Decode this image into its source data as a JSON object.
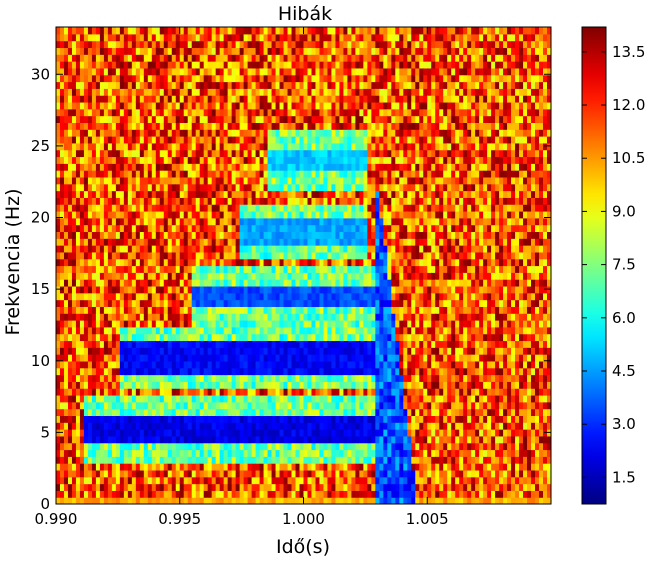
{
  "chart_data": {
    "type": "heatmap",
    "title": "Hibák",
    "xlabel": "Idő(s)",
    "ylabel": "Frekvencia (Hz)",
    "xlim": [
      0.99,
      1.01
    ],
    "ylim": [
      0,
      33.3
    ],
    "x_ticks": [
      0.99,
      0.995,
      1.0,
      1.005
    ],
    "x_tick_labels": [
      "0.990",
      "0.995",
      "1.000",
      "1.005"
    ],
    "y_ticks": [
      0,
      5,
      10,
      15,
      20,
      25,
      30
    ],
    "y_tick_labels": [
      "0",
      "5",
      "10",
      "15",
      "20",
      "25",
      "30"
    ],
    "colorbar": {
      "colormap": "jet",
      "range": [
        0.75,
        14.2
      ],
      "ticks": [
        1.5,
        3.0,
        4.5,
        6.0,
        7.5,
        9.0,
        10.5,
        12.0,
        13.5
      ],
      "tick_labels": [
        "1.5",
        "3.0",
        "4.5",
        "6.0",
        "7.5",
        "9.0",
        "10.5",
        "12.0",
        "13.5"
      ]
    },
    "background_level": 11.5,
    "low_error_bands": [
      {
        "t_start": 0.9912,
        "t_end": 1.0029,
        "f_center": 5.2,
        "f_halfwidth": 0.9,
        "level": 1.5
      },
      {
        "t_start": 0.9925,
        "t_end": 1.0029,
        "f_center": 10.2,
        "f_halfwidth": 1.0,
        "level": 1.8
      },
      {
        "t_start": 0.9955,
        "t_end": 1.0029,
        "f_center": 14.5,
        "f_halfwidth": 0.9,
        "level": 2.8
      },
      {
        "t_start": 0.9975,
        "t_end": 1.0025,
        "f_center": 19.0,
        "f_halfwidth": 0.8,
        "level": 4.0
      },
      {
        "t_start": 0.9985,
        "t_end": 1.0025,
        "f_center": 24.0,
        "f_halfwidth": 0.8,
        "level": 4.5
      }
    ],
    "transient": {
      "t_start": 1.0029,
      "t_end": 1.0045,
      "f_min": 0,
      "f_max": 22,
      "level": 2.0
    }
  }
}
